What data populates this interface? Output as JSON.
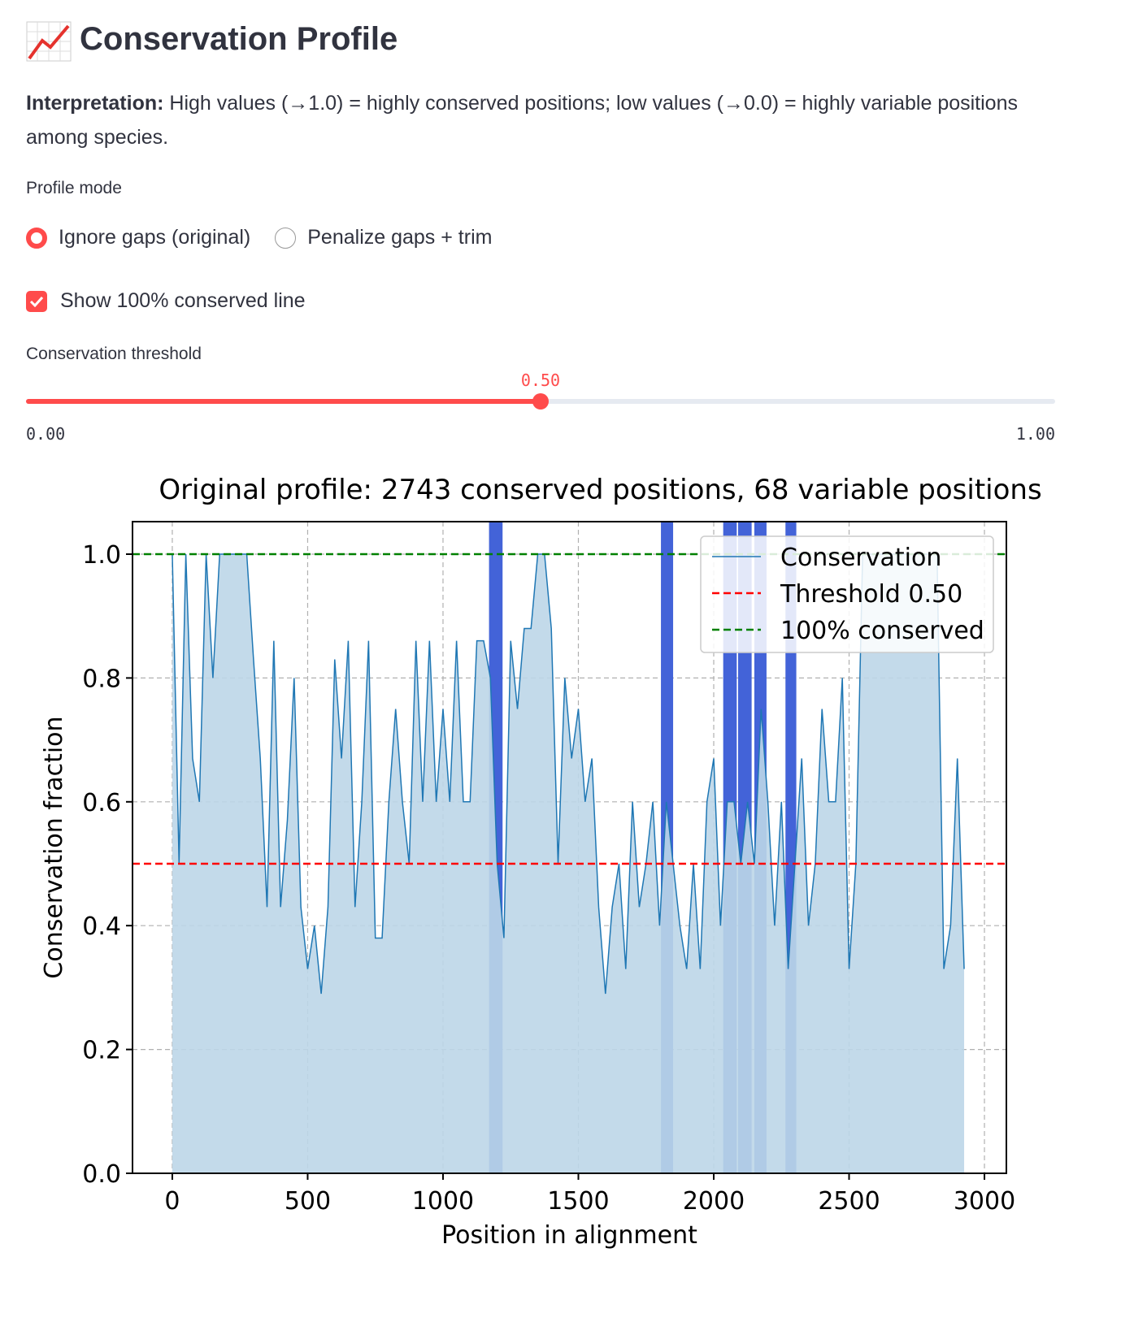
{
  "header": {
    "title": "Conservation Profile"
  },
  "interpretation": {
    "lead": "Interpretation:",
    "text": "High values (→1.0) = highly conserved positions; low values (→0.0) = highly variable positions among species."
  },
  "profile_mode": {
    "label": "Profile mode",
    "options": [
      "Ignore gaps (original)",
      "Penalize gaps + trim"
    ],
    "selected": 0
  },
  "show_line": {
    "label": "Show 100% conserved line",
    "checked": true
  },
  "threshold_slider": {
    "label": "Conservation threshold",
    "value": {
      "value": 0.5,
      "label": "0.50"
    },
    "min": {
      "value": 0,
      "label": "0.00"
    },
    "max": {
      "value": 1,
      "label": "1.00"
    }
  },
  "chart_data": {
    "type": "line",
    "title": "Original profile: 2743 conserved positions, 68 variable positions",
    "x_label": "Position in alignment",
    "y_label": "Conservation fraction",
    "x": [
      0,
      25,
      50,
      75,
      100,
      125,
      150,
      175,
      200,
      225,
      250,
      275,
      300,
      325,
      350,
      375,
      400,
      425,
      450,
      475,
      500,
      525,
      550,
      575,
      600,
      625,
      650,
      675,
      700,
      725,
      750,
      775,
      800,
      825,
      850,
      875,
      900,
      925,
      950,
      975,
      1000,
      1025,
      1050,
      1075,
      1100,
      1125,
      1150,
      1175,
      1200,
      1225,
      1250,
      1275,
      1300,
      1325,
      1350,
      1375,
      1400,
      1425,
      1450,
      1475,
      1500,
      1525,
      1550,
      1575,
      1600,
      1625,
      1650,
      1675,
      1700,
      1725,
      1750,
      1775,
      1800,
      1825,
      1850,
      1875,
      1900,
      1925,
      1950,
      1975,
      2000,
      2025,
      2050,
      2075,
      2100,
      2125,
      2150,
      2175,
      2200,
      2225,
      2250,
      2275,
      2300,
      2325,
      2350,
      2375,
      2400,
      2425,
      2450,
      2475,
      2500,
      2525,
      2550,
      2575,
      2600,
      2625,
      2650,
      2675,
      2700,
      2725,
      2750,
      2775,
      2800,
      2825,
      2850,
      2875,
      2900,
      2925
    ],
    "series": [
      {
        "name": "Conservation",
        "color": "#1f77b4",
        "fill": "#bcd6e8",
        "values": [
          1.0,
          0.5,
          1.0,
          0.67,
          0.6,
          1.0,
          0.8,
          1.0,
          1.0,
          1.0,
          1.0,
          1.0,
          0.83,
          0.67,
          0.43,
          0.86,
          0.43,
          0.57,
          0.8,
          0.43,
          0.33,
          0.4,
          0.29,
          0.43,
          0.83,
          0.67,
          0.86,
          0.43,
          0.6,
          0.86,
          0.38,
          0.38,
          0.6,
          0.75,
          0.6,
          0.5,
          0.86,
          0.6,
          0.86,
          0.6,
          0.75,
          0.6,
          0.86,
          0.6,
          0.6,
          0.86,
          0.86,
          0.8,
          0.5,
          0.38,
          0.86,
          0.75,
          0.88,
          0.88,
          1.0,
          1.0,
          0.88,
          0.5,
          0.8,
          0.67,
          0.75,
          0.6,
          0.67,
          0.43,
          0.29,
          0.43,
          0.5,
          0.33,
          0.6,
          0.43,
          0.5,
          0.6,
          0.4,
          0.6,
          0.5,
          0.4,
          0.33,
          0.5,
          0.33,
          0.6,
          0.67,
          0.4,
          0.6,
          0.6,
          0.5,
          0.6,
          0.5,
          0.75,
          0.6,
          0.4,
          0.6,
          0.33,
          0.5,
          0.67,
          0.4,
          0.5,
          0.75,
          0.6,
          0.6,
          0.8,
          0.33,
          0.5,
          1.0,
          1.0,
          1.0,
          1.0,
          1.0,
          1.0,
          1.0,
          1.0,
          1.0,
          1.0,
          1.0,
          1.0,
          0.33,
          0.4,
          0.67,
          0.33
        ]
      }
    ],
    "hlines": [
      {
        "name": "Threshold 0.50",
        "value": 0.5,
        "color": "#ff0000"
      },
      {
        "name": "100% conserved",
        "value": 1.0,
        "color": "#008000"
      }
    ],
    "spans": [
      [
        1170,
        1220
      ],
      [
        1805,
        1850
      ],
      [
        2035,
        2085
      ],
      [
        2090,
        2140
      ],
      [
        2150,
        2195
      ],
      [
        2265,
        2305
      ]
    ],
    "span_color": "#4363d8",
    "xlim": [
      -147,
      3081
    ],
    "ylim": [
      0,
      1.0525
    ],
    "xticks": [
      0,
      500,
      1000,
      1500,
      2000,
      2500,
      3000
    ],
    "yticks": [
      {
        "value": 0,
        "label": "0.0"
      },
      0.2,
      0.4,
      0.6,
      0.8,
      {
        "value": 1,
        "label": "1.0"
      }
    ],
    "grid": true,
    "legend": "upper right"
  }
}
